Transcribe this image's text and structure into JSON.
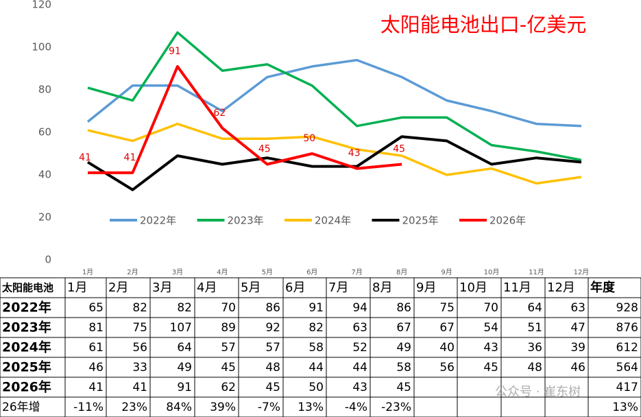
{
  "chart_data": {
    "type": "line",
    "title": "太阳能电池出口-亿美元",
    "categories": [
      "1月",
      "2月",
      "3月",
      "4月",
      "5月",
      "6月",
      "7月",
      "8月",
      "9月",
      "10月",
      "11月",
      "12月"
    ],
    "ylim": [
      0,
      120
    ],
    "yticks": [
      0,
      20,
      40,
      60,
      80,
      100,
      120
    ],
    "grid": false,
    "legend": "bottom",
    "series": [
      {
        "name": "2022年",
        "color": "#5b9bd5",
        "values": [
          65,
          82,
          82,
          70,
          86,
          91,
          94,
          86,
          75,
          70,
          64,
          63
        ]
      },
      {
        "name": "2023年",
        "color": "#00b050",
        "values": [
          81,
          75,
          107,
          89,
          92,
          82,
          63,
          67,
          67,
          54,
          51,
          47
        ]
      },
      {
        "name": "2024年",
        "color": "#ffc000",
        "values": [
          61,
          56,
          64,
          57,
          57,
          58,
          52,
          49,
          40,
          43,
          36,
          39
        ]
      },
      {
        "name": "2025年",
        "color": "#000000",
        "values": [
          46,
          33,
          49,
          45,
          48,
          44,
          44,
          58,
          56,
          45,
          48,
          46
        ]
      },
      {
        "name": "2026年",
        "color": "#ff0000",
        "data_labels": true,
        "values": [
          41,
          41,
          91,
          62,
          45,
          50,
          43,
          45,
          null,
          null,
          null,
          null
        ]
      }
    ]
  },
  "table": {
    "header": [
      "太阳能电池",
      "1月",
      "2月",
      "3月",
      "4月",
      "5月",
      "6月",
      "7月",
      "8月",
      "9月",
      "10月",
      "11月",
      "12月",
      "年度"
    ],
    "rows": [
      [
        "2022年",
        65,
        82,
        82,
        70,
        86,
        91,
        94,
        86,
        75,
        70,
        64,
        63,
        928
      ],
      [
        "2023年",
        81,
        75,
        107,
        89,
        92,
        82,
        63,
        67,
        67,
        54,
        51,
        47,
        876
      ],
      [
        "2024年",
        61,
        56,
        64,
        57,
        57,
        58,
        52,
        49,
        40,
        43,
        36,
        39,
        612
      ],
      [
        "2025年",
        46,
        33,
        49,
        45,
        48,
        44,
        44,
        58,
        56,
        45,
        48,
        46,
        564
      ],
      [
        "2026年",
        41,
        41,
        91,
        62,
        45,
        50,
        43,
        45,
        null,
        null,
        null,
        null,
        417
      ],
      [
        "26年增",
        "-11%",
        "23%",
        "84%",
        "39%",
        "-7%",
        "13%",
        "-4%",
        "-23%",
        null,
        null,
        null,
        null,
        "13%"
      ]
    ]
  },
  "watermark": "公众号 · 崔东树"
}
